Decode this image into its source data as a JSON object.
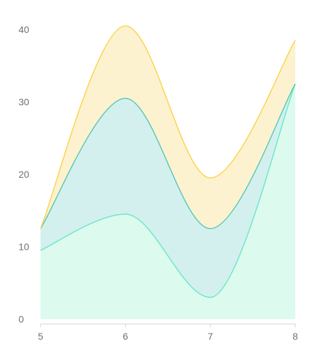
{
  "chart_data": {
    "type": "area",
    "stacked": true,
    "smooth": true,
    "x": [
      5,
      6,
      7,
      8
    ],
    "xlim": [
      5,
      8
    ],
    "ylim": [
      0,
      40
    ],
    "y_ticks": [
      0,
      10,
      20,
      30,
      40
    ],
    "x_ticks": [
      5,
      6,
      7,
      8
    ],
    "grid": false,
    "series": [
      {
        "values": [
          9.5,
          14.5,
          3,
          32.5
        ],
        "line_color": "#6ee7c7",
        "fill_color": "#dcfaee"
      },
      {
        "values": [
          3,
          16,
          9.5,
          0
        ],
        "line_color": "#5cc8b4",
        "fill_color": "#d3f0ef"
      },
      {
        "values": [
          0,
          10,
          7,
          6
        ],
        "line_color": "#fcd34d",
        "fill_color": "#fdf2cf"
      }
    ],
    "axis_color": "#d0d3da",
    "tick_label_color": "#6e7079"
  }
}
